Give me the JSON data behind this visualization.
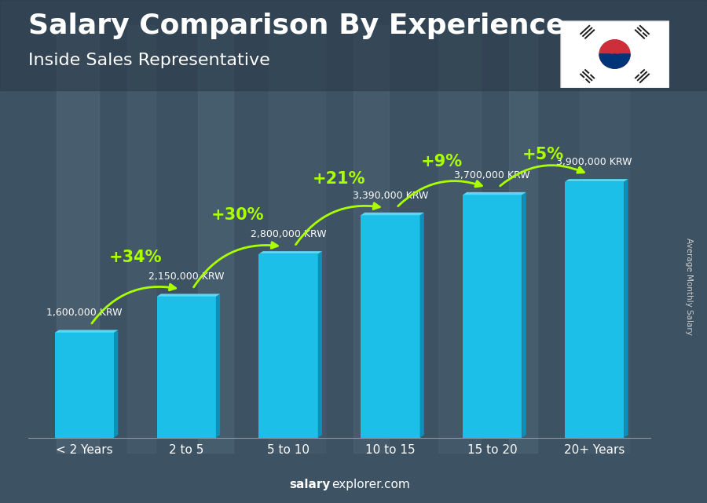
{
  "title": "Salary Comparison By Experience",
  "subtitle": "Inside Sales Representative",
  "ylabel": "Average Monthly Salary",
  "salary_bold": "salary",
  "salary_normal": "explorer.com",
  "categories": [
    "< 2 Years",
    "2 to 5",
    "5 to 10",
    "10 to 15",
    "15 to 20",
    "20+ Years"
  ],
  "values": [
    1600000,
    2150000,
    2800000,
    3390000,
    3700000,
    3900000
  ],
  "value_labels": [
    "1,600,000 KRW",
    "2,150,000 KRW",
    "2,800,000 KRW",
    "3,390,000 KRW",
    "3,700,000 KRW",
    "3,900,000 KRW"
  ],
  "pct_labels": [
    "+34%",
    "+30%",
    "+21%",
    "+9%",
    "+5%"
  ],
  "bar_color_face": "#1bbfe8",
  "bar_color_top": "#5ad8f5",
  "bar_color_side": "#0d90b8",
  "pct_color": "#aaff00",
  "bg_color": "#4a5e6e",
  "ylim_max": 4600000,
  "bar_width": 0.58,
  "side_depth": 0.07,
  "title_fontsize": 26,
  "subtitle_fontsize": 16,
  "cat_fontsize": 11,
  "val_fontsize": 9,
  "pct_fontsize": 15
}
